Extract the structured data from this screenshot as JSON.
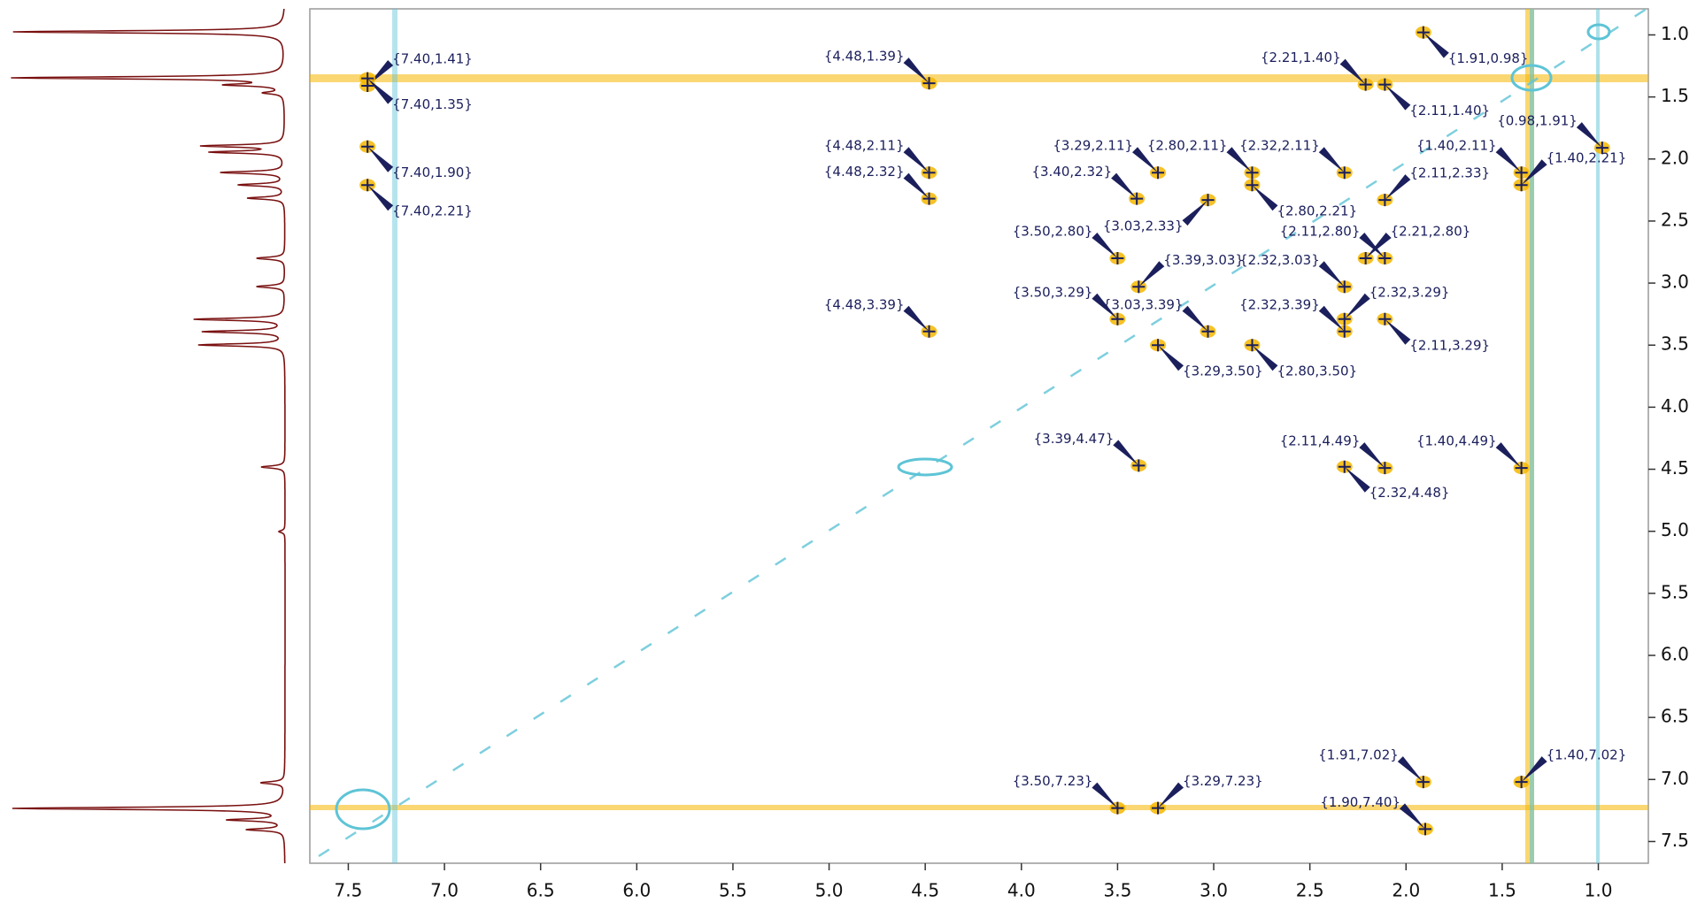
{
  "chart_data": {
    "type": "scatter",
    "x": [
      7.4,
      7.4,
      7.4,
      7.4,
      4.48,
      4.48,
      4.48,
      4.48,
      2.21,
      1.91,
      2.11,
      0.98,
      1.4,
      1.4,
      3.29,
      2.8,
      2.32,
      3.4,
      2.8,
      2.11,
      3.03,
      3.5,
      2.11,
      2.21,
      3.39,
      2.32,
      3.5,
      3.03,
      2.32,
      2.32,
      2.11,
      3.29,
      2.8,
      3.39,
      2.11,
      2.32,
      1.4,
      1.91,
      1.4,
      3.5,
      3.29,
      1.9
    ],
    "values": [
      1.41,
      1.35,
      1.9,
      2.21,
      1.39,
      2.11,
      2.32,
      3.39,
      1.4,
      0.98,
      1.4,
      1.91,
      2.11,
      2.21,
      2.11,
      2.11,
      2.11,
      2.32,
      2.21,
      2.33,
      2.33,
      2.8,
      2.8,
      2.8,
      3.03,
      3.03,
      3.29,
      3.39,
      3.39,
      3.29,
      3.29,
      3.5,
      3.5,
      4.47,
      4.49,
      4.48,
      4.49,
      7.02,
      7.02,
      7.23,
      7.23,
      7.4
    ],
    "labels": [
      "{7.40,1.41}",
      "{7.40,1.35}",
      "{7.40,1.90}",
      "{7.40,2.21}",
      "{4.48,1.39}",
      "{4.48,2.11}",
      "{4.48,2.32}",
      "{4.48,3.39}",
      "{2.21,1.40}",
      "{1.91,0.98}",
      "{2.11,1.40}",
      "{0.98,1.91}",
      "{1.40,2.11}",
      "{1.40,2.21}",
      "{3.29,2.11}",
      "{2.80,2.11}",
      "{2.32,2.11}",
      "{3.40,2.32}",
      "{2.80,2.21}",
      "{2.11,2.33}",
      "{3.03,2.33}",
      "{3.50,2.80}",
      "{2.11,2.80}",
      "{2.21,2.80}",
      "{3.39,3.03}",
      "{2.32,3.03}",
      "{3.50,3.29}",
      "{3.03,3.39}",
      "{2.32,3.39}",
      "{2.32,3.29}",
      "{2.11,3.29}",
      "{3.29,3.50}",
      "{2.80,3.50}",
      "{3.39,4.47}",
      "{2.11,4.49}",
      "{2.32,4.48}",
      "{1.40,4.49}",
      "{1.91,7.02}",
      "{1.40,7.02}",
      "{3.50,7.23}",
      "{3.29,7.23}",
      "{1.90,7.40}"
    ],
    "xlim": [
      7.7,
      0.74
    ],
    "ylim": [
      0.79,
      7.675
    ],
    "xticks": [
      7.5,
      {
        "value": 7,
        "label": "7.0"
      },
      6.5,
      {
        "value": 6,
        "label": "6.0"
      },
      5.5,
      {
        "value": 5,
        "label": "5.0"
      },
      4.5,
      {
        "value": 4,
        "label": "4.0"
      },
      3.5,
      {
        "value": 3,
        "label": "3.0"
      },
      2.5,
      {
        "value": 2,
        "label": "2.0"
      },
      1.5,
      {
        "value": 1,
        "label": "1.0"
      }
    ],
    "yticks": [
      {
        "value": 1,
        "label": "1.0"
      },
      1.5,
      {
        "value": 2,
        "label": "2.0"
      },
      2.5,
      {
        "value": 3,
        "label": "3.0"
      },
      3.5,
      {
        "value": 4,
        "label": "4.0"
      },
      4.5,
      {
        "value": 5,
        "label": "5.0"
      },
      5.5,
      {
        "value": 6,
        "label": "6.0"
      },
      6.5,
      {
        "value": 7,
        "label": "7.0"
      },
      7.5
    ],
    "color": "#1b1f5c",
    "contour_color": "#f5b700"
  }
}
